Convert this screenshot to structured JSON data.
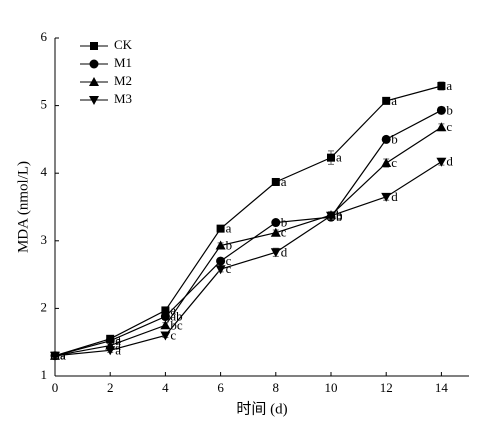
{
  "chart_data": {
    "type": "line",
    "x_label": "时间 (d)",
    "y_label": "MDA (nmol/L)",
    "x": [
      0,
      2,
      4,
      6,
      8,
      10,
      12,
      14
    ],
    "xlim": [
      0,
      15
    ],
    "xticks": [
      0,
      2,
      4,
      6,
      8,
      10,
      12,
      14
    ],
    "ylim": [
      1,
      6
    ],
    "yticks": [
      1,
      2,
      3,
      4,
      5,
      6
    ],
    "legend": "upper left",
    "series": [
      {
        "name": "CK",
        "marker": "square",
        "color": "#000000",
        "values": [
          1.3,
          1.55,
          1.97,
          3.18,
          3.87,
          4.23,
          5.07,
          5.29
        ],
        "errors": [
          0.03,
          0.03,
          0.05,
          0.03,
          0.05,
          0.1,
          0.03,
          0.06
        ],
        "point_labels": [
          "a",
          "a",
          "a",
          "a",
          "a",
          "a",
          "a",
          "a"
        ]
      },
      {
        "name": "M1",
        "marker": "circle",
        "color": "#000000",
        "values": [
          1.3,
          1.52,
          1.88,
          2.7,
          3.27,
          3.35,
          4.5,
          4.93
        ],
        "errors": [
          0.03,
          0.03,
          0.04,
          0.04,
          0.04,
          0.05,
          0.04,
          0.05
        ],
        "point_labels": [
          "a",
          "a",
          "ab",
          "c",
          "b",
          "b",
          "b",
          "b"
        ]
      },
      {
        "name": "M2",
        "marker": "triangle-up",
        "color": "#000000",
        "values": [
          1.3,
          1.45,
          1.75,
          2.93,
          3.12,
          3.38,
          4.15,
          4.68
        ],
        "errors": [
          0.03,
          0.03,
          0.04,
          0.04,
          0.04,
          0.05,
          0.06,
          0.05
        ],
        "point_labels": [
          "a",
          "a",
          "bc",
          "b",
          "c",
          "b",
          "c",
          "c"
        ]
      },
      {
        "name": "M3",
        "marker": "triangle-down",
        "color": "#000000",
        "values": [
          1.3,
          1.38,
          1.6,
          2.58,
          2.83,
          3.37,
          3.65,
          4.17
        ],
        "errors": [
          0.03,
          0.03,
          0.03,
          0.04,
          0.06,
          0.05,
          0.05,
          0.05
        ],
        "point_labels": [
          "a",
          "a",
          "c",
          "c",
          "d",
          "b",
          "d",
          "d"
        ]
      }
    ]
  }
}
